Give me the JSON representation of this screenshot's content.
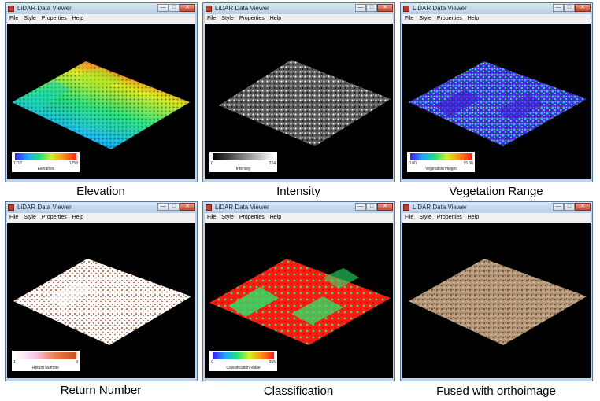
{
  "app_title": "LiDAR Data Viewer",
  "menu": [
    "File",
    "Style",
    "Properties",
    "Help"
  ],
  "window_buttons": {
    "minimize": "—",
    "maximize": "□",
    "close": "✕"
  },
  "panels": [
    {
      "caption": "Elevation",
      "legend": {
        "min": "1717",
        "max": "1753",
        "label": "Elevation"
      }
    },
    {
      "caption": "Intensity",
      "legend": {
        "min": "0",
        "max": "224",
        "label": "Intensity"
      }
    },
    {
      "caption": "Vegetation Range",
      "legend": {
        "min": "0.00",
        "max": "15.36",
        "label": "Vegetation Height"
      }
    },
    {
      "caption": "Return Number",
      "legend": {
        "min": "1",
        "max": "3",
        "label": "Return Number"
      }
    },
    {
      "caption": "Classification",
      "legend": {
        "min": "0",
        "max": "255",
        "label": "Classification Value"
      }
    },
    {
      "caption": "Fused with orthoimage"
    }
  ],
  "colors": {
    "title_bar": "#c8dbef",
    "canvas_bg": "#000000",
    "close_button": "#c8472d"
  }
}
